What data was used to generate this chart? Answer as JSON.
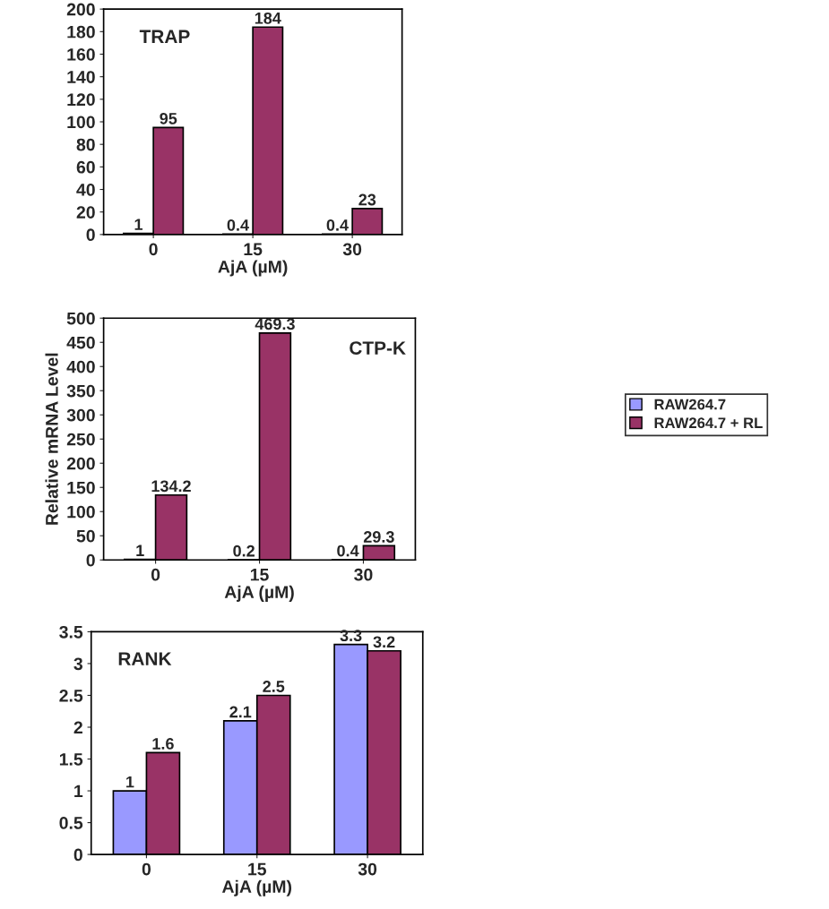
{
  "chart_data": [
    {
      "type": "bar",
      "title": "TRAP",
      "xlabel": "AjA (µM)",
      "categories": [
        "0",
        "15",
        "30"
      ],
      "ylim": [
        0,
        200
      ],
      "yticks": [
        0,
        20,
        40,
        60,
        80,
        100,
        120,
        140,
        160,
        180,
        200
      ],
      "data_labels": true,
      "legend": false,
      "series": [
        {
          "color": "#9999ff",
          "values": [
            1,
            0.4,
            0.4
          ]
        },
        {
          "color": "#993366",
          "values": [
            95,
            184,
            23
          ]
        }
      ]
    },
    {
      "type": "bar",
      "title": "CTP-K",
      "xlabel": "AjA (µM)",
      "ylabel": "Relative mRNA Level",
      "categories": [
        "0",
        "15",
        "30"
      ],
      "ylim": [
        0,
        500
      ],
      "yticks": [
        0,
        50,
        100,
        150,
        200,
        250,
        300,
        350,
        400,
        450,
        500
      ],
      "data_labels": true,
      "legend": "right",
      "series": [
        {
          "name": "RAW264.7",
          "color": "#9999ff",
          "values": [
            1,
            0.2,
            0.4
          ]
        },
        {
          "name": "RAW264.7 + RL",
          "color": "#993366",
          "values": [
            134.2,
            469.3,
            29.3
          ]
        }
      ]
    },
    {
      "type": "bar",
      "title": "RANK",
      "xlabel": "AjA (µM)",
      "categories": [
        "0",
        "15",
        "30"
      ],
      "ylim": [
        0,
        3.5
      ],
      "yticks": [
        0,
        0.5,
        1,
        1.5,
        2,
        2.5,
        3,
        3.5
      ],
      "data_labels": true,
      "legend": false,
      "series": [
        {
          "color": "#9999ff",
          "values": [
            1,
            2.1,
            3.3
          ]
        },
        {
          "color": "#993366",
          "values": [
            1.6,
            2.5,
            3.2
          ]
        }
      ]
    }
  ]
}
